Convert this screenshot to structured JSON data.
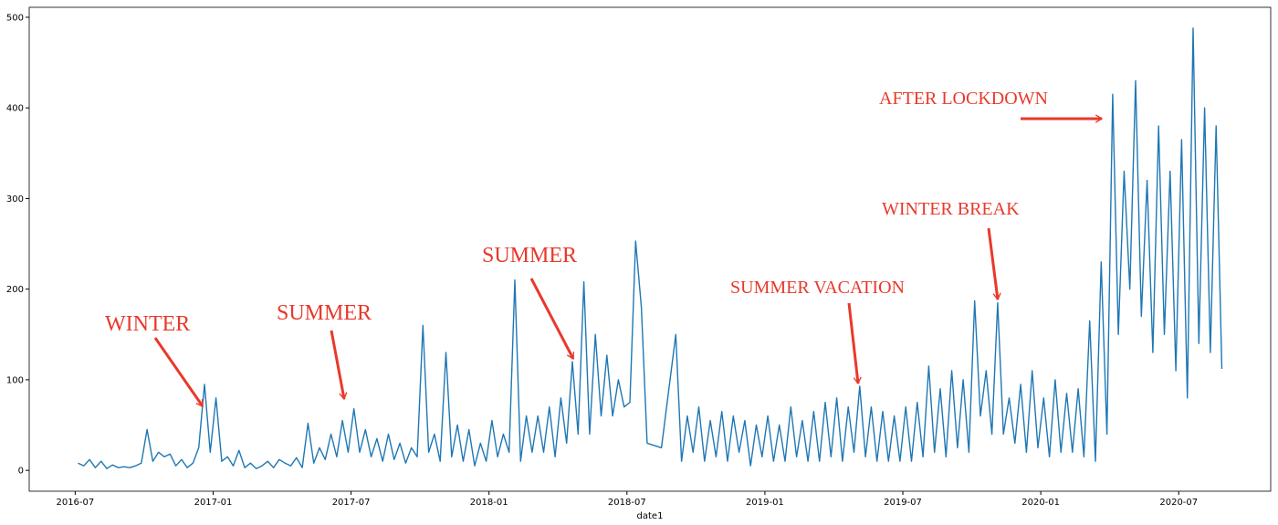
{
  "chart_data": {
    "type": "line",
    "xlabel": "date1",
    "color": "#1f77b4",
    "x": [
      "2016-07",
      "2016-07",
      "2016-07",
      "2016-07",
      "2016-08",
      "2016-08",
      "2016-08",
      "2016-08",
      "2016-09",
      "2016-09",
      "2016-09",
      "2016-09",
      "2016-10",
      "2016-10",
      "2016-10",
      "2016-10",
      "2016-11",
      "2016-11",
      "2016-11",
      "2016-11",
      "2016-12",
      "2016-12",
      "2016-12",
      "2016-12",
      "2017-01",
      "2017-01",
      "2017-01",
      "2017-01",
      "2017-02",
      "2017-02",
      "2017-02",
      "2017-02",
      "2017-03",
      "2017-03",
      "2017-03",
      "2017-03",
      "2017-04",
      "2017-04",
      "2017-04",
      "2017-04",
      "2017-05",
      "2017-05",
      "2017-05",
      "2017-05",
      "2017-06",
      "2017-06",
      "2017-06",
      "2017-06",
      "2017-07",
      "2017-07",
      "2017-07",
      "2017-07",
      "2017-08",
      "2017-08",
      "2017-08",
      "2017-08",
      "2017-09",
      "2017-09",
      "2017-09",
      "2017-09",
      "2017-10",
      "2017-10",
      "2017-10",
      "2017-10",
      "2017-11",
      "2017-11",
      "2017-11",
      "2017-11",
      "2017-12",
      "2017-12",
      "2017-12",
      "2017-12",
      "2018-01",
      "2018-01",
      "2018-01",
      "2018-01",
      "2018-02",
      "2018-02",
      "2018-02",
      "2018-02",
      "2018-03",
      "2018-03",
      "2018-03",
      "2018-03",
      "2018-04",
      "2018-04",
      "2018-04",
      "2018-04",
      "2018-05",
      "2018-05",
      "2018-05",
      "2018-05",
      "2018-06",
      "2018-06",
      "2018-06",
      "2018-06",
      "2018-07",
      "2018-07",
      "2018-07",
      "2018-07",
      "2018-08",
      "2018-09",
      "2018-09",
      "2018-09",
      "2018-09",
      "2018-10",
      "2018-10",
      "2018-10",
      "2018-10",
      "2018-11",
      "2018-11",
      "2018-11",
      "2018-11",
      "2018-12",
      "2018-12",
      "2018-12",
      "2018-12",
      "2019-01",
      "2019-01",
      "2019-01",
      "2019-01",
      "2019-02",
      "2019-02",
      "2019-02",
      "2019-02",
      "2019-03",
      "2019-03",
      "2019-03",
      "2019-03",
      "2019-04",
      "2019-04",
      "2019-04",
      "2019-04",
      "2019-05",
      "2019-05",
      "2019-05",
      "2019-05",
      "2019-06",
      "2019-06",
      "2019-06",
      "2019-06",
      "2019-07",
      "2019-07",
      "2019-07",
      "2019-07",
      "2019-08",
      "2019-08",
      "2019-08",
      "2019-08",
      "2019-09",
      "2019-09",
      "2019-09",
      "2019-09",
      "2019-10",
      "2019-10",
      "2019-10",
      "2019-10",
      "2019-11",
      "2019-11",
      "2019-11",
      "2019-11",
      "2019-12",
      "2019-12",
      "2019-12",
      "2019-12",
      "2020-01",
      "2020-01",
      "2020-01",
      "2020-01",
      "2020-02",
      "2020-02",
      "2020-02",
      "2020-02",
      "2020-03",
      "2020-03",
      "2020-03",
      "2020-03",
      "2020-04",
      "2020-04",
      "2020-04",
      "2020-04",
      "2020-05",
      "2020-05",
      "2020-05",
      "2020-05",
      "2020-06",
      "2020-06",
      "2020-06",
      "2020-06",
      "2020-07",
      "2020-07",
      "2020-07",
      "2020-07",
      "2020-08",
      "2020-08",
      "2020-08",
      "2020-08"
    ],
    "values": [
      8,
      5,
      12,
      3,
      10,
      2,
      6,
      3,
      4,
      3,
      5,
      8,
      45,
      10,
      20,
      15,
      18,
      5,
      12,
      3,
      8,
      25,
      95,
      20,
      80,
      10,
      15,
      5,
      22,
      3,
      8,
      2,
      5,
      10,
      3,
      12,
      8,
      5,
      14,
      3,
      52,
      8,
      25,
      12,
      40,
      15,
      55,
      20,
      68,
      20,
      45,
      15,
      35,
      10,
      40,
      12,
      30,
      8,
      25,
      15,
      160,
      20,
      40,
      10,
      130,
      15,
      50,
      10,
      45,
      5,
      30,
      10,
      55,
      15,
      40,
      20,
      210,
      10,
      60,
      20,
      60,
      20,
      70,
      15,
      80,
      30,
      120,
      40,
      208,
      40,
      150,
      60,
      127,
      60,
      100,
      70,
      75,
      253,
      180,
      30,
      25,
      150,
      10,
      60,
      20,
      70,
      10,
      55,
      15,
      65,
      10,
      60,
      20,
      55,
      5,
      50,
      15,
      60,
      10,
      50,
      10,
      70,
      15,
      55,
      10,
      65,
      10,
      75,
      15,
      80,
      10,
      70,
      20,
      93,
      15,
      70,
      10,
      65,
      10,
      60,
      10,
      70,
      10,
      75,
      15,
      115,
      20,
      90,
      15,
      110,
      25,
      100,
      20,
      187,
      60,
      110,
      40,
      185,
      40,
      80,
      30,
      95,
      20,
      110,
      25,
      80,
      15,
      100,
      20,
      85,
      20,
      90,
      15,
      165,
      10,
      230,
      40,
      415,
      150,
      330,
      200,
      430,
      170,
      320,
      130,
      380,
      150,
      330,
      110,
      365,
      80,
      488,
      140,
      400,
      130,
      380,
      112
    ],
    "xlim": [
      "2016-05",
      "2020-11"
    ],
    "xticks": [
      "2016-07",
      "2017-01",
      "2017-07",
      "2018-01",
      "2018-07",
      "2019-01",
      "2019-07",
      "2020-01",
      "2020-07"
    ],
    "ylim": [
      -23,
      511
    ],
    "yticks": [
      0,
      100,
      200,
      300,
      400,
      500
    ],
    "annotations": [
      "WINTER",
      "SUMMER",
      "SUMMER",
      "SUMMER VACATION",
      "WINTER BREAK",
      "AFTER LOCKDOWN"
    ]
  }
}
